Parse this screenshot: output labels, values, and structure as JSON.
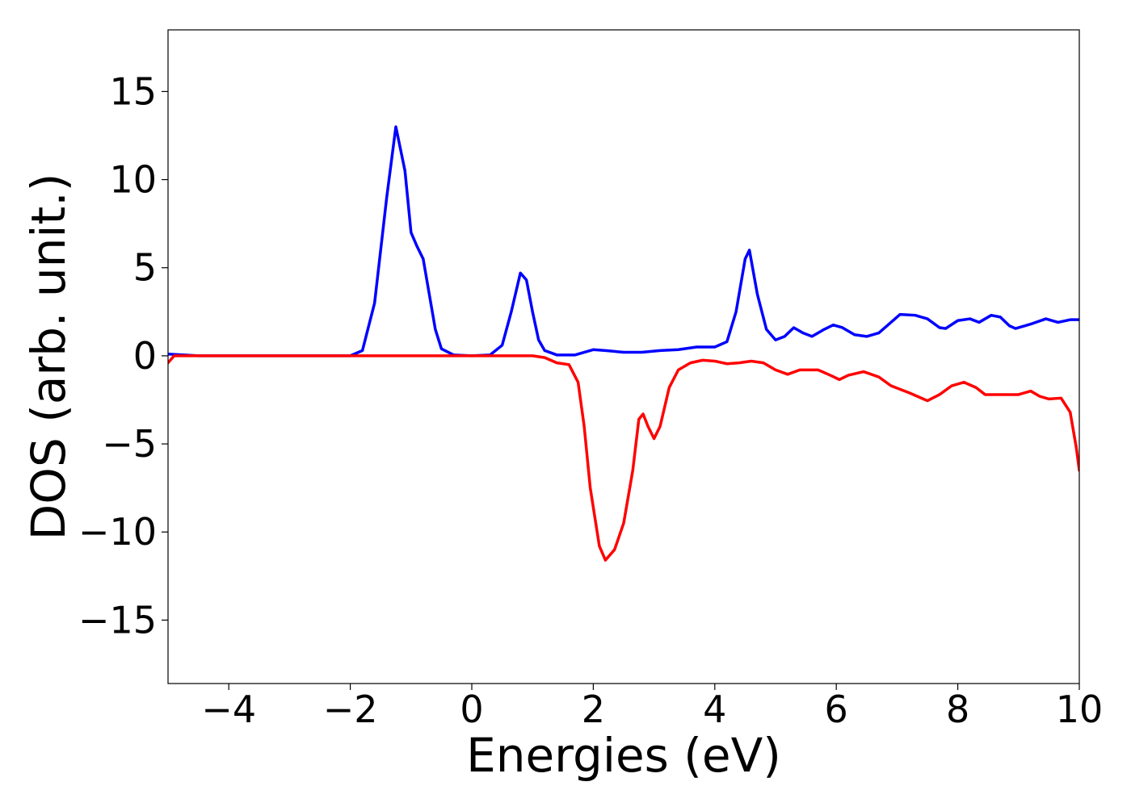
{
  "chart_data": {
    "type": "line",
    "x_label": "Energies (eV)",
    "y_label": "DOS (arb. unit.)",
    "xlim": [
      -5,
      10
    ],
    "ylim": [
      -18.6,
      18.5
    ],
    "xticks": [
      {
        "value": -4,
        "label": "−4"
      },
      {
        "value": -2,
        "label": "−2"
      },
      0,
      2,
      4,
      6,
      8,
      10
    ],
    "yticks": [
      {
        "value": -15,
        "label": "−15"
      },
      {
        "value": -10,
        "label": "−10"
      },
      {
        "value": -5,
        "label": "−5"
      },
      0,
      5,
      10,
      15
    ],
    "grid": false,
    "series": [
      {
        "color": "#0000ff",
        "x": [
          -5,
          -4.5,
          -3,
          -2,
          -1.8,
          -1.6,
          -1.4,
          -1.25,
          -1.1,
          -1.0,
          -0.9,
          -0.8,
          -0.7,
          -0.6,
          -0.5,
          -0.3,
          0,
          0.3,
          0.5,
          0.65,
          0.8,
          0.9,
          1.0,
          1.1,
          1.2,
          1.4,
          1.7,
          2.0,
          2.2,
          2.5,
          2.8,
          3.1,
          3.4,
          3.7,
          4.0,
          4.2,
          4.35,
          4.5,
          4.57,
          4.7,
          4.85,
          5.0,
          5.15,
          5.3,
          5.45,
          5.6,
          5.8,
          5.95,
          6.1,
          6.3,
          6.5,
          6.7,
          6.9,
          7.05,
          7.3,
          7.5,
          7.7,
          7.8,
          8.0,
          8.2,
          8.35,
          8.55,
          8.7,
          8.85,
          8.95,
          9.2,
          9.45,
          9.65,
          9.85,
          10
        ],
        "values": [
          0.1,
          0,
          0,
          0,
          0.3,
          3,
          9,
          13,
          10.5,
          7,
          6.2,
          5.5,
          3.5,
          1.5,
          0.4,
          0.05,
          0,
          0.05,
          0.6,
          2.5,
          4.7,
          4.3,
          2.5,
          0.9,
          0.3,
          0.05,
          0.05,
          0.35,
          0.3,
          0.2,
          0.2,
          0.3,
          0.35,
          0.5,
          0.5,
          0.8,
          2.5,
          5.5,
          6,
          3.5,
          1.5,
          0.9,
          1.1,
          1.6,
          1.3,
          1.1,
          1.5,
          1.75,
          1.6,
          1.2,
          1.1,
          1.3,
          1.9,
          2.35,
          2.3,
          2.1,
          1.6,
          1.55,
          2.0,
          2.1,
          1.9,
          2.3,
          2.2,
          1.7,
          1.55,
          1.8,
          2.1,
          1.9,
          2.05,
          2.05
        ]
      },
      {
        "color": "#ff0000",
        "x": [
          -5,
          -4.9,
          -3,
          0,
          1.0,
          1.2,
          1.4,
          1.6,
          1.75,
          1.85,
          1.95,
          2.1,
          2.2,
          2.35,
          2.5,
          2.65,
          2.75,
          2.82,
          2.9,
          3.0,
          3.1,
          3.25,
          3.4,
          3.6,
          3.8,
          4.0,
          4.2,
          4.4,
          4.6,
          4.8,
          5.0,
          5.2,
          5.4,
          5.7,
          5.9,
          6.05,
          6.2,
          6.45,
          6.7,
          6.9,
          7.2,
          7.5,
          7.7,
          7.9,
          8.1,
          8.3,
          8.45,
          8.7,
          9.0,
          9.2,
          9.35,
          9.5,
          9.7,
          9.85,
          9.95,
          10
        ],
        "values": [
          -0.4,
          0,
          0,
          0,
          0,
          -0.1,
          -0.4,
          -0.5,
          -1.5,
          -4,
          -7.5,
          -10.8,
          -11.6,
          -11,
          -9.5,
          -6.5,
          -3.6,
          -3.3,
          -4,
          -4.7,
          -4,
          -1.8,
          -0.8,
          -0.4,
          -0.25,
          -0.3,
          -0.45,
          -0.4,
          -0.3,
          -0.4,
          -0.8,
          -1.05,
          -0.8,
          -0.8,
          -1.1,
          -1.35,
          -1.1,
          -0.9,
          -1.2,
          -1.7,
          -2.1,
          -2.55,
          -2.2,
          -1.7,
          -1.5,
          -1.8,
          -2.2,
          -2.2,
          -2.2,
          -2.0,
          -2.3,
          -2.45,
          -2.4,
          -3.2,
          -5.2,
          -6.5
        ]
      }
    ]
  }
}
